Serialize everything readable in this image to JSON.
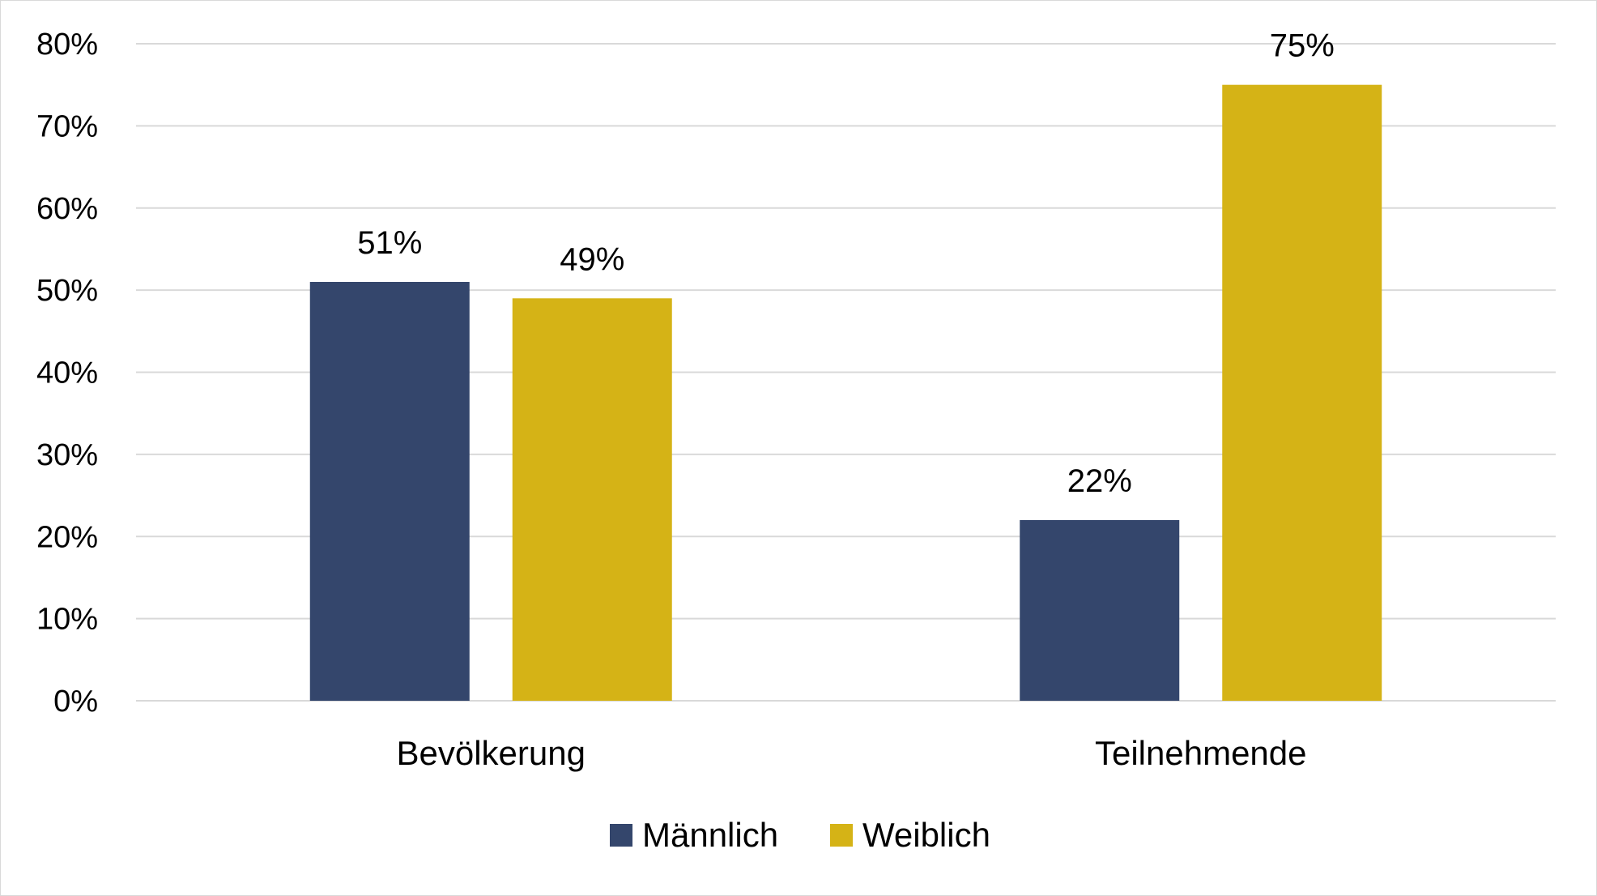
{
  "chart_data": {
    "type": "bar",
    "categories": [
      "Bevölkerung",
      "Teilnehmende"
    ],
    "series": [
      {
        "name": "Männlich",
        "values": [
          51,
          22
        ],
        "color": "#34466c"
      },
      {
        "name": "Weiblich",
        "values": [
          49,
          75
        ],
        "color": "#d5b316"
      }
    ],
    "data_labels": [
      [
        "51%",
        "22%"
      ],
      [
        "49%",
        "75%"
      ]
    ],
    "ylim": [
      0,
      80
    ],
    "yticks": [
      0,
      10,
      20,
      30,
      40,
      50,
      60,
      70,
      80
    ],
    "ytick_labels": [
      "0%",
      "10%",
      "20%",
      "30%",
      "40%",
      "50%",
      "60%",
      "70%",
      "80%"
    ],
    "title": "",
    "xlabel": "",
    "ylabel": "",
    "grid": true,
    "legend_position": "bottom"
  }
}
